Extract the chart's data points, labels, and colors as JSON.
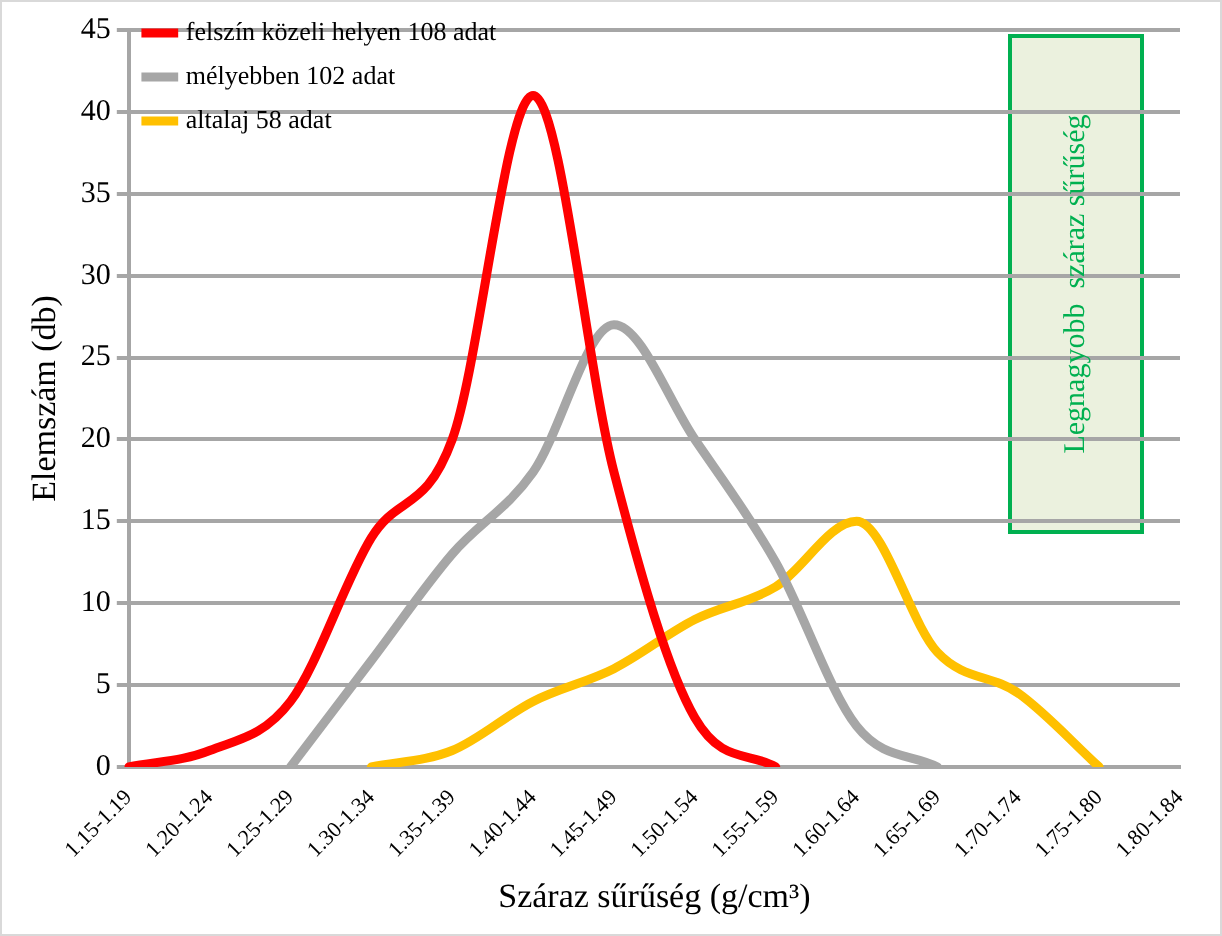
{
  "chart_data": {
    "type": "line",
    "xlabel": "Száraz sűrűség (g/cm³)",
    "ylabel": "Elemszám (db)",
    "categories": [
      "1.15-1.19",
      "1.20-1.24",
      "1.25-1.29",
      "1.30-1.34",
      "1.35-1.39",
      "1.40-1.44",
      "1.45-1.49",
      "1.50-1.54",
      "1.55-1.59",
      "1.60-1.64",
      "1.65-1.69",
      "1.70-1.74",
      "1.75-1.80",
      "1.80-1.84"
    ],
    "series": [
      {
        "name": "felszín közeli helyen 108 adat",
        "color": "#ff0000",
        "values": [
          0,
          1,
          4,
          14,
          20,
          41,
          18,
          3,
          0,
          null,
          null,
          null,
          null,
          null
        ]
      },
      {
        "name": "mélyebben 102 adat",
        "color": "#a6a6a6",
        "values": [
          null,
          null,
          0,
          6.5,
          13,
          18,
          27,
          20,
          12.5,
          2.5,
          0,
          null,
          null,
          null
        ]
      },
      {
        "name": "altalaj 58 adat",
        "color": "#ffc000",
        "values": [
          null,
          null,
          null,
          0,
          1,
          4,
          6,
          9,
          11,
          15,
          7,
          4.5,
          0,
          null
        ]
      }
    ],
    "ylim": [
      0,
      45
    ],
    "yticks": [
      0,
      5,
      10,
      15,
      20,
      25,
      30,
      35,
      40,
      45
    ],
    "grid": "y",
    "legend": "top left",
    "marker": "none",
    "line_style": "solid",
    "annotations": [
      "Legnagyobb  száraz sűrűség"
    ]
  }
}
